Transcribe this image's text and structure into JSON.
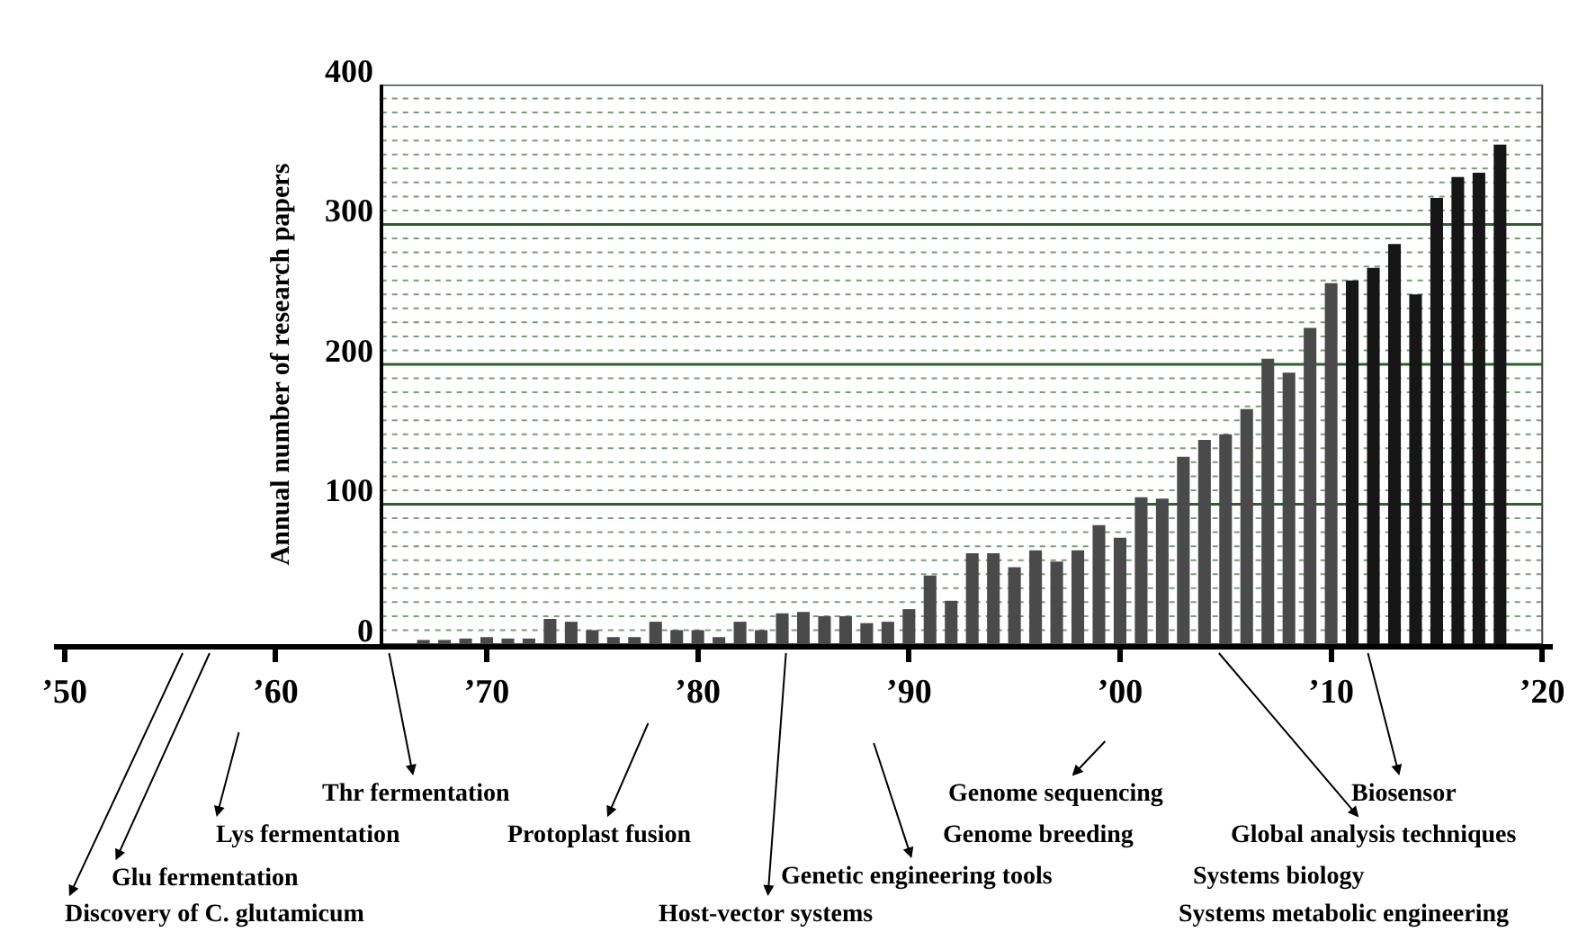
{
  "chart_data": {
    "type": "bar",
    "ylabel": "Annual number of research papers",
    "x": [
      1967,
      1968,
      1969,
      1970,
      1971,
      1972,
      1973,
      1974,
      1975,
      1976,
      1977,
      1978,
      1979,
      1980,
      1981,
      1982,
      1983,
      1984,
      1985,
      1986,
      1987,
      1988,
      1989,
      1990,
      1991,
      1992,
      1993,
      1994,
      1995,
      1996,
      1997,
      1998,
      1999,
      2000,
      2001,
      2002,
      2003,
      2004,
      2005,
      2006,
      2007,
      2008,
      2009,
      2010,
      2011,
      2012,
      2013,
      2014,
      2015,
      2016,
      2017,
      2018
    ],
    "values": [
      3,
      3,
      4,
      5,
      4,
      4,
      18,
      16,
      10,
      5,
      5,
      16,
      10,
      10,
      5,
      16,
      10,
      22,
      23,
      20,
      20,
      15,
      16,
      25,
      49,
      31,
      65,
      65,
      55,
      67,
      59,
      67,
      85,
      76,
      105,
      104,
      134,
      146,
      150,
      168,
      204,
      194,
      226,
      258,
      260,
      269,
      286,
      250,
      319,
      334,
      337,
      357
    ],
    "colors": [
      "#4a4a4a",
      "#4a4a4a",
      "#4a4a4a",
      "#4a4a4a",
      "#4a4a4a",
      "#4a4a4a",
      "#4a4a4a",
      "#4a4a4a",
      "#4a4a4a",
      "#4a4a4a",
      "#4a4a4a",
      "#4a4a4a",
      "#4a4a4a",
      "#4a4a4a",
      "#4a4a4a",
      "#4a4a4a",
      "#4a4a4a",
      "#4a4a4a",
      "#4a4a4a",
      "#4a4a4a",
      "#4a4a4a",
      "#4a4a4a",
      "#4a4a4a",
      "#4a4a4a",
      "#4a4a4a",
      "#4a4a4a",
      "#4a4a4a",
      "#4a4a4a",
      "#4a4a4a",
      "#4a4a4a",
      "#4a4a4a",
      "#4a4a4a",
      "#4a4a4a",
      "#4a4a4a",
      "#4a4a4a",
      "#4a4a4a",
      "#4a4a4a",
      "#4a4a4a",
      "#4a4a4a",
      "#4a4a4a",
      "#4a4a4a",
      "#4a4a4a",
      "#4a4a4a",
      "#4a4a4a",
      "#161616",
      "#161616",
      "#161616",
      "#161616",
      "#161616",
      "#161616",
      "#161616",
      "#161616"
    ],
    "xlim": [
      1949.5,
      2020.5
    ],
    "xticks": [
      {
        "value": 1950,
        "label": "’50"
      },
      {
        "value": 1960,
        "label": "’60"
      },
      {
        "value": 1970,
        "label": "’70"
      },
      {
        "value": 1980,
        "label": "’80"
      },
      {
        "value": 1990,
        "label": "’90"
      },
      {
        "value": 2000,
        "label": "’00"
      },
      {
        "value": 2010,
        "label": "’10"
      },
      {
        "value": 2020,
        "label": "’20"
      }
    ],
    "ylim": [
      0,
      400
    ],
    "yticks": [
      0,
      {
        "value": 10,
        "label": null
      },
      {
        "value": 20,
        "label": null
      },
      {
        "value": 30,
        "label": null
      },
      {
        "value": 40,
        "label": null
      },
      {
        "value": 50,
        "label": null
      },
      {
        "value": 60,
        "label": null
      },
      {
        "value": 70,
        "label": null
      },
      {
        "value": 80,
        "label": null
      },
      {
        "value": 90,
        "label": null
      },
      100,
      {
        "value": 110,
        "label": null
      },
      {
        "value": 120,
        "label": null
      },
      {
        "value": 130,
        "label": null
      },
      {
        "value": 140,
        "label": null
      },
      {
        "value": 150,
        "label": null
      },
      {
        "value": 160,
        "label": null
      },
      {
        "value": 170,
        "label": null
      },
      {
        "value": 180,
        "label": null
      },
      {
        "value": 190,
        "label": null
      },
      200,
      {
        "value": 210,
        "label": null
      },
      {
        "value": 220,
        "label": null
      },
      {
        "value": 230,
        "label": null
      },
      {
        "value": 240,
        "label": null
      },
      {
        "value": 250,
        "label": null
      },
      {
        "value": 260,
        "label": null
      },
      {
        "value": 270,
        "label": null
      },
      {
        "value": 280,
        "label": null
      },
      {
        "value": 290,
        "label": null
      },
      300,
      {
        "value": 310,
        "label": null
      },
      {
        "value": 320,
        "label": null
      },
      {
        "value": 330,
        "label": null
      },
      {
        "value": 340,
        "label": null
      },
      {
        "value": 350,
        "label": null
      },
      {
        "value": 360,
        "label": null
      },
      {
        "value": 370,
        "label": null
      },
      {
        "value": 380,
        "label": null
      },
      {
        "value": 390,
        "label": null
      },
      400
    ],
    "grid": "y",
    "annotations": [
      "Discovery of C. glutamicum",
      "Glu fermentation",
      "Lys fermentation",
      "Thr fermentation",
      "Protoplast fusion",
      "Host-vector systems",
      "Genetic engineering tools",
      "Genome sequencing",
      "Genome breeding",
      "Biosensor",
      "Global analysis techniques",
      "Systems biology",
      "Systems metabolic engineering"
    ]
  }
}
